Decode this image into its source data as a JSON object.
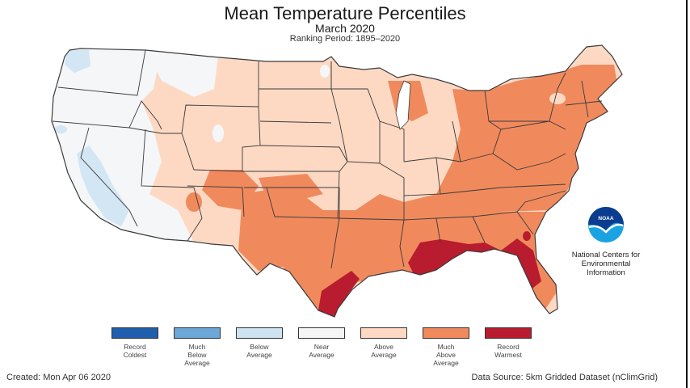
{
  "header": {
    "title": "Mean Temperature Percentiles",
    "subtitle": "March 2020",
    "ranking_period": "Ranking Period: 1895–2020"
  },
  "legend": {
    "items": [
      {
        "label": "Record\nColdest",
        "color": "#1f5fae"
      },
      {
        "label": "Much\nBelow\nAverage",
        "color": "#6ba8d8"
      },
      {
        "label": "Below\nAverage",
        "color": "#cde3f2"
      },
      {
        "label": "Near\nAverage",
        "color": "#f5f5f5"
      },
      {
        "label": "Above\nAverage",
        "color": "#fdd9c4"
      },
      {
        "label": "Much\nAbove\nAverage",
        "color": "#f08a5d"
      },
      {
        "label": "Record\nWarmest",
        "color": "#b81c2e"
      }
    ]
  },
  "logo": {
    "agency_mark": "NOAA",
    "org_text": "National Centers for\nEnvironmental\nInformation",
    "colors": {
      "dark_blue": "#0a3d8f",
      "light_blue": "#1aa3e0"
    }
  },
  "footer": {
    "created": "Created: Mon Apr 06 2020",
    "source": "Data Source: 5km Gridded Dataset (nClimGrid)"
  },
  "map_colors": {
    "below": "#dbeaf5",
    "near": "#f4f6f8",
    "above": "#fdd9c4",
    "much_above": "#f08a5d",
    "record_warm": "#b81c2e",
    "border": "#3a3a3a"
  }
}
